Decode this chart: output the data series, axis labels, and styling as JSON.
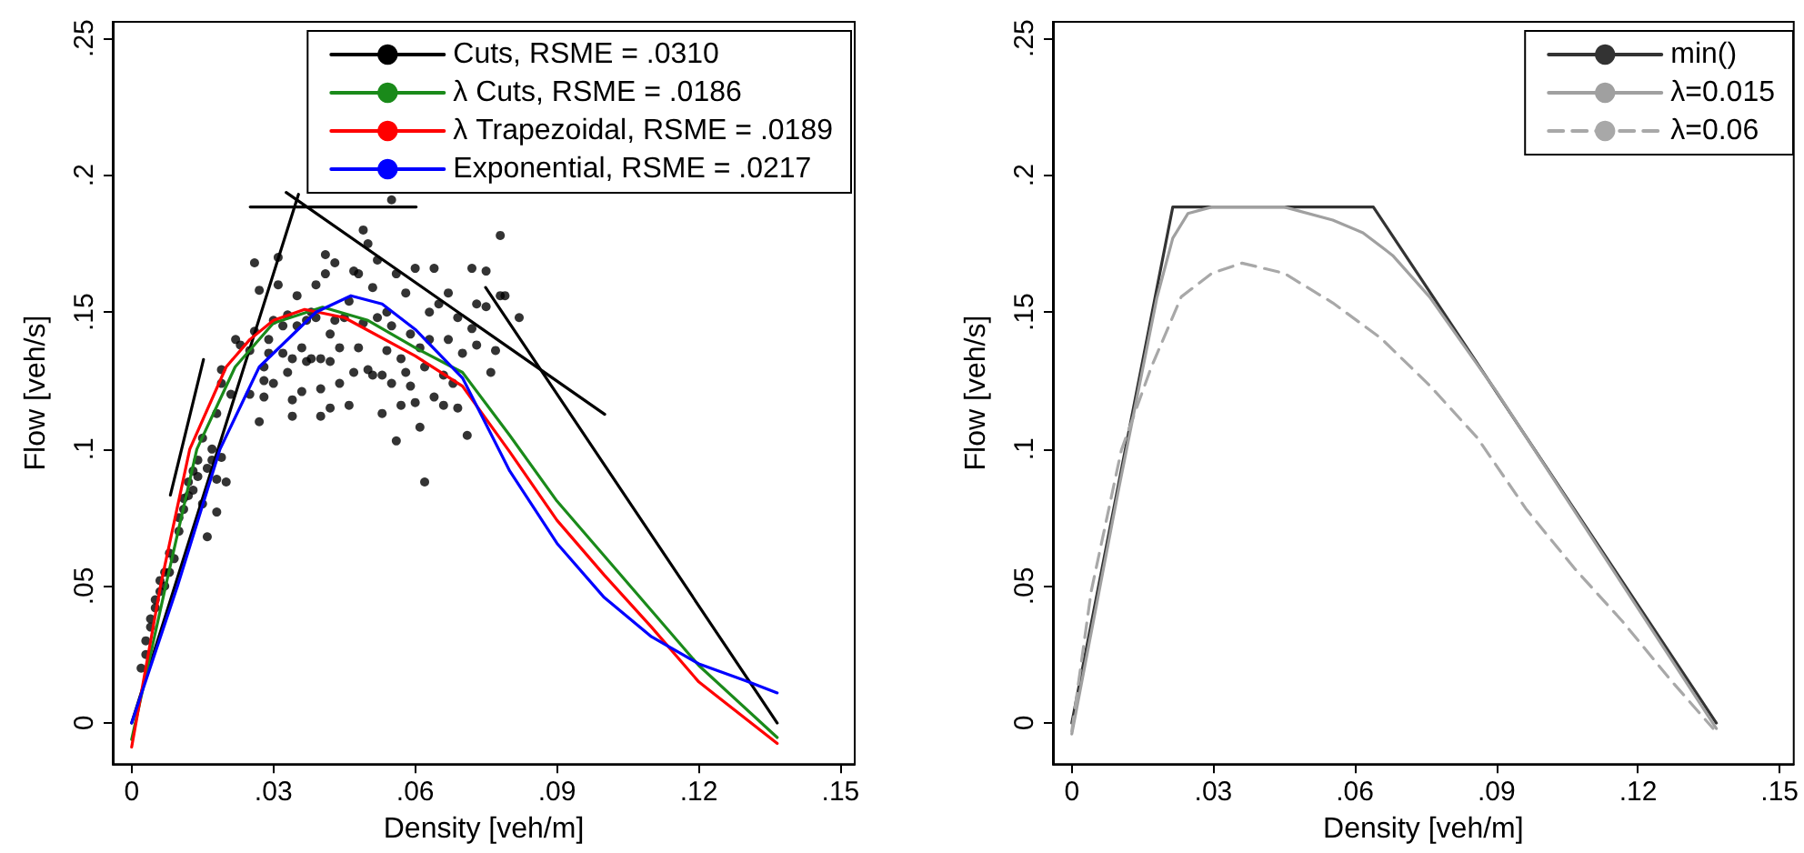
{
  "chart_data": [
    {
      "type": "line",
      "xlabel": "Density [veh/m]",
      "ylabel": "Flow [veh/s]",
      "legend": "top right",
      "xlim": [
        -0.004,
        0.153
      ],
      "ylim": [
        -0.015,
        0.256
      ],
      "xticks": [
        0,
        {
          "value": 0.03,
          "label": ".03"
        },
        {
          "value": 0.06,
          "label": ".06"
        },
        {
          "value": 0.09,
          "label": ".09"
        },
        {
          "value": 0.12,
          "label": ".12"
        },
        {
          "value": 0.15,
          "label": ".15"
        }
      ],
      "yticks": [
        0,
        {
          "value": 0.05,
          "label": ".05"
        },
        {
          "value": 0.1,
          "label": ".1"
        },
        {
          "value": 0.15,
          "label": ".15"
        },
        {
          "value": 0.2,
          "label": ".2"
        },
        {
          "value": 0.25,
          "label": ".25"
        }
      ],
      "series": [
        {
          "type": "scatter",
          "marker": "circle",
          "color": "#000000",
          "x": [
            0.002,
            0.003,
            0.003,
            0.004,
            0.004,
            0.005,
            0.005,
            0.006,
            0.006,
            0.007,
            0.007,
            0.008,
            0.008,
            0.009,
            0.01,
            0.01,
            0.011,
            0.011,
            0.012,
            0.012,
            0.013,
            0.013,
            0.014,
            0.014,
            0.015,
            0.015,
            0.016,
            0.016,
            0.017,
            0.017,
            0.018,
            0.018,
            0.018,
            0.019,
            0.019,
            0.019,
            0.02,
            0.021,
            0.022,
            0.023,
            0.025,
            0.025,
            0.026,
            0.026,
            0.027,
            0.027,
            0.028,
            0.028,
            0.028,
            0.029,
            0.029,
            0.03,
            0.03,
            0.031,
            0.031,
            0.032,
            0.032,
            0.033,
            0.033,
            0.034,
            0.034,
            0.034,
            0.035,
            0.035,
            0.036,
            0.036,
            0.037,
            0.037,
            0.038,
            0.038,
            0.039,
            0.039,
            0.04,
            0.04,
            0.04,
            0.041,
            0.041,
            0.042,
            0.042,
            0.042,
            0.043,
            0.043,
            0.044,
            0.044,
            0.045,
            0.046,
            0.046,
            0.047,
            0.047,
            0.048,
            0.048,
            0.049,
            0.049,
            0.05,
            0.05,
            0.051,
            0.051,
            0.052,
            0.052,
            0.053,
            0.053,
            0.054,
            0.054,
            0.055,
            0.055,
            0.055,
            0.056,
            0.056,
            0.057,
            0.057,
            0.058,
            0.058,
            0.059,
            0.059,
            0.06,
            0.06,
            0.061,
            0.061,
            0.062,
            0.062,
            0.063,
            0.063,
            0.064,
            0.064,
            0.065,
            0.066,
            0.066,
            0.067,
            0.067,
            0.068,
            0.069,
            0.069,
            0.07,
            0.071,
            0.072,
            0.072,
            0.073,
            0.073,
            0.075,
            0.075,
            0.076,
            0.077,
            0.078,
            0.078,
            0.079,
            0.082
          ],
          "values": [
            0.02,
            0.025,
            0.03,
            0.035,
            0.038,
            0.042,
            0.045,
            0.048,
            0.052,
            0.055,
            0.05,
            0.055,
            0.062,
            0.06,
            0.07,
            0.075,
            0.078,
            0.082,
            0.083,
            0.088,
            0.085,
            0.092,
            0.09,
            0.096,
            0.104,
            0.08,
            0.068,
            0.093,
            0.096,
            0.1,
            0.077,
            0.089,
            0.113,
            0.097,
            0.124,
            0.129,
            0.088,
            0.12,
            0.14,
            0.138,
            0.12,
            0.136,
            0.143,
            0.168,
            0.158,
            0.11,
            0.119,
            0.125,
            0.13,
            0.135,
            0.14,
            0.147,
            0.124,
            0.16,
            0.17,
            0.135,
            0.145,
            0.128,
            0.149,
            0.112,
            0.118,
            0.133,
            0.156,
            0.145,
            0.121,
            0.137,
            0.132,
            0.147,
            0.15,
            0.133,
            0.16,
            0.148,
            0.112,
            0.122,
            0.133,
            0.171,
            0.164,
            0.115,
            0.142,
            0.132,
            0.168,
            0.147,
            0.124,
            0.137,
            0.148,
            0.116,
            0.154,
            0.165,
            0.128,
            0.164,
            0.137,
            0.18,
            0.146,
            0.175,
            0.129,
            0.159,
            0.127,
            0.169,
            0.148,
            0.113,
            0.127,
            0.15,
            0.136,
            0.191,
            0.145,
            0.124,
            0.103,
            0.164,
            0.133,
            0.116,
            0.157,
            0.128,
            0.142,
            0.123,
            0.166,
            0.117,
            0.137,
            0.108,
            0.13,
            0.088,
            0.14,
            0.15,
            0.166,
            0.119,
            0.153,
            0.116,
            0.127,
            0.157,
            0.14,
            0.124,
            0.148,
            0.115,
            0.135,
            0.105,
            0.166,
            0.144,
            0.153,
            0.138,
            0.165,
            0.152,
            0.128,
            0.136,
            0.156,
            0.178,
            0.156,
            0.148
          ]
        },
        {
          "name": "Cuts, RSME = .0310",
          "marker": "none",
          "color": "#000000",
          "x": [
            0,
            0.0353
          ],
          "values": [
            0,
            0.193
          ]
        },
        {
          "marker": "none",
          "color": "#000000",
          "x": [
            0.0082,
            0.0152
          ],
          "values": [
            0.0832,
            0.1327
          ]
        },
        {
          "marker": "none",
          "color": "#000000",
          "x": [
            0.0251,
            0.0602
          ],
          "values": [
            0.1884,
            0.1884
          ]
        },
        {
          "marker": "none",
          "color": "#000000",
          "x": [
            0.0327,
            0.1001
          ],
          "values": [
            0.1937,
            0.1127
          ]
        },
        {
          "marker": "none",
          "color": "#000000",
          "x": [
            0.0749,
            0.1366
          ],
          "values": [
            0.159,
            0
          ]
        },
        {
          "name": "λ Cuts, RSME = .0186",
          "marker": "none",
          "color": "#1a8a1a",
          "x": [
            0,
            0.0072,
            0.0138,
            0.0219,
            0.03,
            0.0404,
            0.05,
            0.06,
            0.07,
            0.08,
            0.09,
            0.1,
            0.11,
            0.12,
            0.1366
          ],
          "values": [
            -0.006,
            0.05,
            0.1,
            0.13,
            0.146,
            0.1518,
            0.147,
            0.137,
            0.128,
            0.105,
            0.081,
            0.061,
            0.041,
            0.021,
            -0.0053
          ]
        },
        {
          "name": "λ Trapezoidal, RSME = .0189",
          "marker": "none",
          "color": "#ff0000",
          "x": [
            0,
            0.0061,
            0.0123,
            0.02,
            0.025,
            0.03,
            0.0366,
            0.045,
            0.06,
            0.07,
            0.08,
            0.09,
            0.1,
            0.11,
            0.12,
            0.1366
          ],
          "values": [
            -0.0088,
            0.05,
            0.1,
            0.13,
            0.14,
            0.147,
            0.151,
            0.148,
            0.134,
            0.123,
            0.099,
            0.074,
            0.054,
            0.035,
            0.015,
            -0.0075
          ]
        },
        {
          "name": "Exponential, RSME = .0217",
          "marker": "none",
          "color": "#0000ff",
          "x": [
            0,
            0.0097,
            0.0187,
            0.027,
            0.039,
            0.0464,
            0.053,
            0.06,
            0.07,
            0.08,
            0.09,
            0.1,
            0.11,
            0.12,
            0.13,
            0.1366
          ],
          "values": [
            0,
            0.05,
            0.1,
            0.13,
            0.15,
            0.156,
            0.153,
            0.1437,
            0.126,
            0.092,
            0.0656,
            0.0458,
            0.0315,
            0.0216,
            0.0154,
            0.011
          ]
        }
      ]
    },
    {
      "type": "line",
      "xlabel": "Density [veh/m]",
      "ylabel": "Flow [veh/s]",
      "legend": "top right",
      "xlim": [
        -0.004,
        0.153
      ],
      "ylim": [
        -0.015,
        0.256
      ],
      "xticks": [
        0,
        {
          "value": 0.03,
          "label": ".03"
        },
        {
          "value": 0.06,
          "label": ".06"
        },
        {
          "value": 0.09,
          "label": ".09"
        },
        {
          "value": 0.12,
          "label": ".12"
        },
        {
          "value": 0.15,
          "label": ".15"
        }
      ],
      "yticks": [
        0,
        {
          "value": 0.05,
          "label": ".05"
        },
        {
          "value": 0.1,
          "label": ".1"
        },
        {
          "value": 0.15,
          "label": ".15"
        },
        {
          "value": 0.2,
          "label": ".2"
        },
        {
          "value": 0.25,
          "label": ".25"
        }
      ],
      "series": [
        {
          "name": "min()",
          "marker": "none",
          "line_style": "solid",
          "color": "#333333",
          "x": [
            0,
            0.0214,
            0.0639,
            0.1366
          ],
          "values": [
            0,
            0.1884,
            0.1884,
            0
          ]
        },
        {
          "name": "λ=0.015",
          "marker": "none",
          "line_style": "solid",
          "color": "#a0a0a0",
          "x": [
            0,
            0.01,
            0.018,
            0.0214,
            0.0246,
            0.0297,
            0.045,
            0.0553,
            0.0617,
            0.068,
            0.0758,
            0.09,
            0.1366
          ],
          "values": [
            -0.004,
            0.086,
            0.155,
            0.177,
            0.186,
            0.1884,
            0.1884,
            0.1836,
            0.179,
            0.1707,
            0.1556,
            0.121,
            -0.002
          ]
        },
        {
          "name": "λ=0.06",
          "marker": "none",
          "line_style": "dashed",
          "color": "#a8a8a8",
          "x": [
            0,
            0.0041,
            0.0105,
            0.0168,
            0.0232,
            0.0297,
            0.0361,
            0.045,
            0.0553,
            0.0655,
            0.0758,
            0.086,
            0.0962,
            0.1065,
            0.1167,
            0.127,
            0.1359
          ],
          "values": [
            -0.003,
            0.048,
            0.0996,
            0.1297,
            0.1556,
            0.1642,
            0.1679,
            0.1642,
            0.1534,
            0.1405,
            0.1233,
            0.104,
            0.0783,
            0.0565,
            0.0371,
            0.0155,
            -0.002
          ]
        }
      ]
    }
  ]
}
